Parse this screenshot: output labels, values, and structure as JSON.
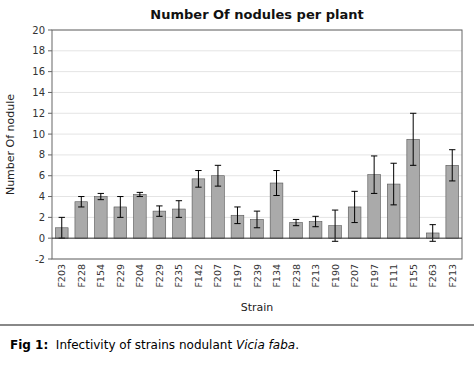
{
  "chart_data": {
    "type": "bar",
    "title": "Number Of nodules per plant",
    "x_label": "Strain",
    "y_label": "Number Of nodule",
    "annotations": [
      "Fig 1:",
      "  Infectivity of strains nodulant ",
      "Vicia faba",
      "."
    ],
    "categories": [
      "F203",
      "F228",
      "F154",
      "F229",
      "F204",
      "F229",
      "F235",
      "F142",
      "F207",
      "F197",
      "F239",
      "F134",
      "F238",
      "F213",
      "F190",
      "F207",
      "F197",
      "F111",
      "F155",
      "F263",
      "F213"
    ],
    "values": [
      1.0,
      3.5,
      4.0,
      3.0,
      4.2,
      2.6,
      2.8,
      5.7,
      6.0,
      2.2,
      1.8,
      5.3,
      1.5,
      1.6,
      1.2,
      3.0,
      6.1,
      5.2,
      9.5,
      0.5,
      7.0
    ],
    "errors": [
      1.0,
      0.5,
      0.3,
      1.0,
      0.2,
      0.5,
      0.8,
      0.8,
      1.0,
      0.8,
      0.8,
      1.2,
      0.3,
      0.5,
      1.5,
      1.5,
      1.8,
      2.0,
      2.5,
      0.8,
      1.5
    ],
    "color": "#aaaaaa",
    "ylim": [
      -2,
      20
    ],
    "yticks": [
      -2,
      0,
      2,
      4,
      6,
      8,
      10,
      12,
      14,
      16,
      18,
      20
    ]
  }
}
